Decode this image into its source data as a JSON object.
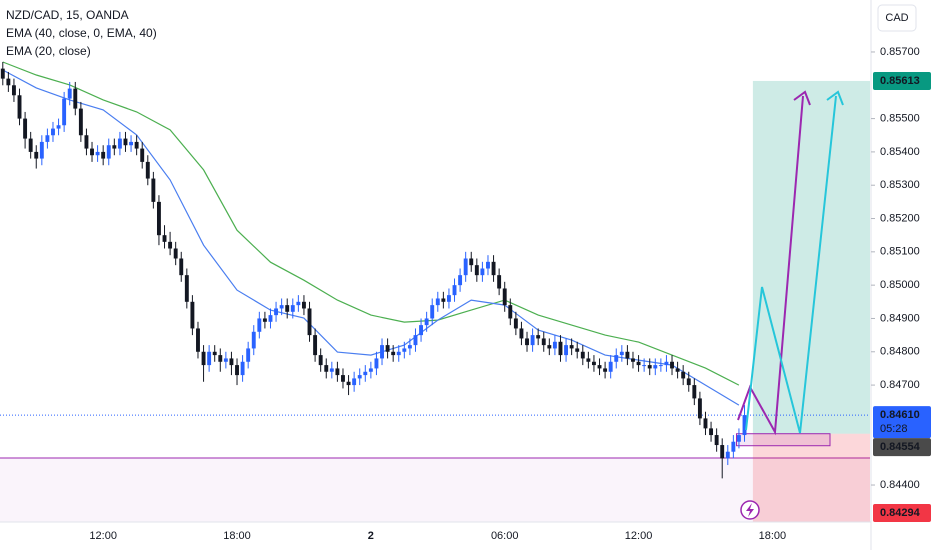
{
  "chart_data": {
    "type": "candlestick",
    "title": "NZD/CAD, 15, OANDA",
    "currency": "CAD",
    "up_color": "#2962ff",
    "down_color": "#131722",
    "xlim": [
      -0.5,
      155.5
    ],
    "ylim": [
      0.84289,
      0.85856
    ],
    "xticks": [
      {
        "value": 18,
        "label": "12:00"
      },
      {
        "value": 42,
        "label": "18:00"
      },
      {
        "value": 66,
        "label": "2"
      },
      {
        "value": 90,
        "label": "06:00"
      },
      {
        "value": 114,
        "label": "12:00"
      },
      {
        "value": 138,
        "label": "18:00"
      }
    ],
    "yticks": [
      {
        "value": 0.857,
        "label": "0.85700"
      },
      {
        "value": 0.855,
        "label": "0.85500"
      },
      {
        "value": 0.854,
        "label": "0.85400"
      },
      {
        "value": 0.853,
        "label": "0.85300"
      },
      {
        "value": 0.852,
        "label": "0.85200"
      },
      {
        "value": 0.851,
        "label": "0.85100"
      },
      {
        "value": 0.85,
        "label": "0.85000"
      },
      {
        "value": 0.849,
        "label": "0.84900"
      },
      {
        "value": 0.848,
        "label": "0.84800"
      },
      {
        "value": 0.847,
        "label": "0.84700"
      },
      {
        "value": 0.844,
        "label": "0.84400"
      }
    ],
    "candles": [
      [
        0.8565,
        0.8567,
        0.856,
        0.8562
      ],
      [
        0.8562,
        0.8564,
        0.8558,
        0.856
      ],
      [
        0.856,
        0.8562,
        0.8555,
        0.8557
      ],
      [
        0.8557,
        0.8559,
        0.8548,
        0.855
      ],
      [
        0.855,
        0.8552,
        0.8541,
        0.8544
      ],
      [
        0.8544,
        0.8546,
        0.8538,
        0.854
      ],
      [
        0.854,
        0.8542,
        0.8535,
        0.8538
      ],
      [
        0.8538,
        0.8545,
        0.8536,
        0.8543
      ],
      [
        0.8543,
        0.8547,
        0.8541,
        0.8545
      ],
      [
        0.8545,
        0.8549,
        0.8543,
        0.8547
      ],
      [
        0.8547,
        0.855,
        0.8545,
        0.8548
      ],
      [
        0.8548,
        0.8558,
        0.8546,
        0.8556
      ],
      [
        0.8556,
        0.8561,
        0.8554,
        0.8559
      ],
      [
        0.8559,
        0.8561,
        0.8551,
        0.8553
      ],
      [
        0.8553,
        0.8555,
        0.8543,
        0.8545
      ],
      [
        0.8545,
        0.8547,
        0.8539,
        0.8541
      ],
      [
        0.8541,
        0.8543,
        0.8537,
        0.8539
      ],
      [
        0.8539,
        0.8542,
        0.8537,
        0.854
      ],
      [
        0.854,
        0.8542,
        0.8536,
        0.8538
      ],
      [
        0.8538,
        0.8544,
        0.8536,
        0.8542
      ],
      [
        0.8542,
        0.8544,
        0.8539,
        0.8541
      ],
      [
        0.8541,
        0.8546,
        0.8539,
        0.8544
      ],
      [
        0.8544,
        0.8546,
        0.854,
        0.8542
      ],
      [
        0.8542,
        0.8545,
        0.854,
        0.8543
      ],
      [
        0.8543,
        0.8545,
        0.8539,
        0.8541
      ],
      [
        0.8541,
        0.8543,
        0.8535,
        0.8537
      ],
      [
        0.8537,
        0.8539,
        0.853,
        0.8532
      ],
      [
        0.8532,
        0.8534,
        0.8523,
        0.8525
      ],
      [
        0.8525,
        0.8527,
        0.8512,
        0.8515
      ],
      [
        0.8515,
        0.8518,
        0.8511,
        0.8513
      ],
      [
        0.8513,
        0.8516,
        0.8509,
        0.8511
      ],
      [
        0.8511,
        0.8513,
        0.8506,
        0.8508
      ],
      [
        0.8508,
        0.851,
        0.8501,
        0.8503
      ],
      [
        0.8503,
        0.8505,
        0.8493,
        0.8495
      ],
      [
        0.8495,
        0.8497,
        0.8485,
        0.8487
      ],
      [
        0.8487,
        0.8489,
        0.8478,
        0.848
      ],
      [
        0.848,
        0.8482,
        0.8471,
        0.8476
      ],
      [
        0.8476,
        0.8482,
        0.8474,
        0.848
      ],
      [
        0.848,
        0.8482,
        0.8477,
        0.8479
      ],
      [
        0.8479,
        0.8481,
        0.8474,
        0.8477
      ],
      [
        0.8477,
        0.848,
        0.8475,
        0.8478
      ],
      [
        0.8478,
        0.848,
        0.8473,
        0.8476
      ],
      [
        0.8476,
        0.8478,
        0.847,
        0.8473
      ],
      [
        0.8473,
        0.8479,
        0.8471,
        0.8477
      ],
      [
        0.8477,
        0.8483,
        0.8475,
        0.8481
      ],
      [
        0.8481,
        0.8488,
        0.8479,
        0.8486
      ],
      [
        0.8486,
        0.8492,
        0.8484,
        0.849
      ],
      [
        0.849,
        0.8492,
        0.8487,
        0.8489
      ],
      [
        0.8489,
        0.8493,
        0.8487,
        0.8491
      ],
      [
        0.8491,
        0.8495,
        0.8489,
        0.8493
      ],
      [
        0.8493,
        0.8496,
        0.8491,
        0.8494
      ],
      [
        0.8494,
        0.8496,
        0.849,
        0.8492
      ],
      [
        0.8492,
        0.8496,
        0.849,
        0.8494
      ],
      [
        0.8494,
        0.8497,
        0.8492,
        0.8495
      ],
      [
        0.8495,
        0.8497,
        0.8491,
        0.8493
      ],
      [
        0.8493,
        0.8495,
        0.8483,
        0.8485
      ],
      [
        0.8485,
        0.8487,
        0.8477,
        0.8479
      ],
      [
        0.8479,
        0.8481,
        0.8474,
        0.8476
      ],
      [
        0.8476,
        0.8478,
        0.8472,
        0.8474
      ],
      [
        0.8474,
        0.8477,
        0.8472,
        0.8475
      ],
      [
        0.8475,
        0.8477,
        0.8471,
        0.8473
      ],
      [
        0.8473,
        0.8475,
        0.8469,
        0.8471
      ],
      [
        0.8471,
        0.8473,
        0.8467,
        0.847
      ],
      [
        0.847,
        0.8474,
        0.8468,
        0.8472
      ],
      [
        0.8472,
        0.8475,
        0.847,
        0.8473
      ],
      [
        0.8473,
        0.8476,
        0.8471,
        0.8474
      ],
      [
        0.8474,
        0.8477,
        0.8472,
        0.8475
      ],
      [
        0.8475,
        0.848,
        0.8473,
        0.8478
      ],
      [
        0.8478,
        0.8484,
        0.8476,
        0.8482
      ],
      [
        0.8482,
        0.8484,
        0.8478,
        0.848
      ],
      [
        0.848,
        0.8482,
        0.8477,
        0.8479
      ],
      [
        0.8479,
        0.8482,
        0.8477,
        0.848
      ],
      [
        0.848,
        0.8483,
        0.8478,
        0.8481
      ],
      [
        0.8481,
        0.8484,
        0.8479,
        0.8482
      ],
      [
        0.8482,
        0.8487,
        0.848,
        0.8485
      ],
      [
        0.8485,
        0.849,
        0.8483,
        0.8488
      ],
      [
        0.8488,
        0.8492,
        0.8486,
        0.849
      ],
      [
        0.849,
        0.8496,
        0.8488,
        0.8494
      ],
      [
        0.8494,
        0.8498,
        0.8492,
        0.8496
      ],
      [
        0.8496,
        0.8498,
        0.8493,
        0.8495
      ],
      [
        0.8495,
        0.8499,
        0.8493,
        0.8497
      ],
      [
        0.8497,
        0.8502,
        0.8495,
        0.85
      ],
      [
        0.85,
        0.8505,
        0.8498,
        0.8503
      ],
      [
        0.8503,
        0.851,
        0.8501,
        0.8508
      ],
      [
        0.8508,
        0.851,
        0.8504,
        0.8506
      ],
      [
        0.8506,
        0.8508,
        0.8501,
        0.8503
      ],
      [
        0.8503,
        0.8507,
        0.8501,
        0.8505
      ],
      [
        0.8505,
        0.8509,
        0.8503,
        0.8507
      ],
      [
        0.8507,
        0.8509,
        0.8501,
        0.8503
      ],
      [
        0.8503,
        0.8505,
        0.8497,
        0.8499
      ],
      [
        0.8499,
        0.8501,
        0.8492,
        0.8494
      ],
      [
        0.8494,
        0.8496,
        0.8488,
        0.849
      ],
      [
        0.849,
        0.8492,
        0.8485,
        0.8487
      ],
      [
        0.8487,
        0.8489,
        0.8482,
        0.8484
      ],
      [
        0.8484,
        0.8486,
        0.848,
        0.8482
      ],
      [
        0.8482,
        0.8487,
        0.848,
        0.8485
      ],
      [
        0.8485,
        0.8487,
        0.8482,
        0.8484
      ],
      [
        0.8484,
        0.8486,
        0.848,
        0.8482
      ],
      [
        0.8482,
        0.8484,
        0.8479,
        0.8481
      ],
      [
        0.8481,
        0.8485,
        0.8479,
        0.8483
      ],
      [
        0.8483,
        0.8485,
        0.8477,
        0.8479
      ],
      [
        0.8479,
        0.8484,
        0.8477,
        0.8482
      ],
      [
        0.8482,
        0.8484,
        0.8479,
        0.8481
      ],
      [
        0.8481,
        0.8483,
        0.8478,
        0.848
      ],
      [
        0.848,
        0.8482,
        0.8476,
        0.8478
      ],
      [
        0.8478,
        0.848,
        0.8475,
        0.8477
      ],
      [
        0.8477,
        0.8479,
        0.8474,
        0.8476
      ],
      [
        0.8476,
        0.8478,
        0.8473,
        0.8475
      ],
      [
        0.8475,
        0.8477,
        0.8472,
        0.8474
      ],
      [
        0.8474,
        0.8479,
        0.8472,
        0.8477
      ],
      [
        0.8477,
        0.8481,
        0.8475,
        0.8479
      ],
      [
        0.8479,
        0.8482,
        0.8477,
        0.848
      ],
      [
        0.848,
        0.8482,
        0.8476,
        0.8478
      ],
      [
        0.8478,
        0.848,
        0.8475,
        0.8477
      ],
      [
        0.8477,
        0.8479,
        0.8474,
        0.8476
      ],
      [
        0.8476,
        0.8478,
        0.8474,
        0.8476
      ],
      [
        0.8476,
        0.8478,
        0.8473,
        0.8475
      ],
      [
        0.8475,
        0.8478,
        0.8473,
        0.8476
      ],
      [
        0.8476,
        0.8478,
        0.8474,
        0.8476
      ],
      [
        0.8476,
        0.8479,
        0.8474,
        0.8477
      ],
      [
        0.8477,
        0.8479,
        0.8473,
        0.8475
      ],
      [
        0.8475,
        0.8477,
        0.8472,
        0.8474
      ],
      [
        0.8474,
        0.8476,
        0.847,
        0.8472
      ],
      [
        0.8472,
        0.8474,
        0.8468,
        0.847
      ],
      [
        0.847,
        0.8472,
        0.8464,
        0.8466
      ],
      [
        0.8466,
        0.8468,
        0.8458,
        0.846
      ],
      [
        0.846,
        0.8462,
        0.8455,
        0.8457
      ],
      [
        0.8457,
        0.8459,
        0.8453,
        0.8455
      ],
      [
        0.8455,
        0.8457,
        0.845,
        0.8452
      ],
      [
        0.8452,
        0.8454,
        0.8442,
        0.8448
      ],
      [
        0.8448,
        0.8452,
        0.8446,
        0.845
      ],
      [
        0.845,
        0.8455,
        0.8448,
        0.8453
      ],
      [
        0.8453,
        0.8457,
        0.8451,
        0.8455
      ],
      [
        0.8455,
        0.8464,
        0.8453,
        0.8461
      ]
    ],
    "lines": [
      {
        "name": "EMA (40, close, 0, EMA, 40)",
        "color": "#4caf50",
        "x": [
          0,
          6,
          12,
          18,
          24,
          30,
          36,
          42,
          48,
          54,
          60,
          66,
          72,
          78,
          84,
          90,
          96,
          102,
          108,
          114,
          120,
          126,
          132
        ],
        "values": [
          0.8567,
          0.85631,
          0.85601,
          0.85556,
          0.8552,
          0.85466,
          0.85346,
          0.85165,
          0.85069,
          0.85015,
          0.84955,
          0.8491,
          0.84889,
          0.84895,
          0.84925,
          0.84955,
          0.8491,
          0.8488,
          0.8485,
          0.84829,
          0.8479,
          0.84751,
          0.847
        ]
      },
      {
        "name": "EMA (20, close)",
        "color": "#4a7ef0",
        "x": [
          0,
          6,
          12,
          18,
          24,
          30,
          36,
          42,
          48,
          54,
          60,
          66,
          72,
          78,
          84,
          90,
          96,
          102,
          108,
          114,
          120,
          126,
          132
        ],
        "values": [
          0.85646,
          0.85592,
          0.85556,
          0.85526,
          0.85451,
          0.85316,
          0.8512,
          0.84985,
          0.84925,
          0.84901,
          0.84799,
          0.8479,
          0.8482,
          0.84895,
          0.84955,
          0.8494,
          0.84865,
          0.84835,
          0.8479,
          0.84775,
          0.8476,
          0.847,
          0.8464
        ]
      }
    ],
    "current_price": {
      "value": 0.8461,
      "label": "0.84610"
    },
    "countdown": "05:28",
    "zone_price": 0.84554,
    "level": 0.84481,
    "position": {
      "target": 0.85613,
      "stop": 0.84294
    }
  }
}
